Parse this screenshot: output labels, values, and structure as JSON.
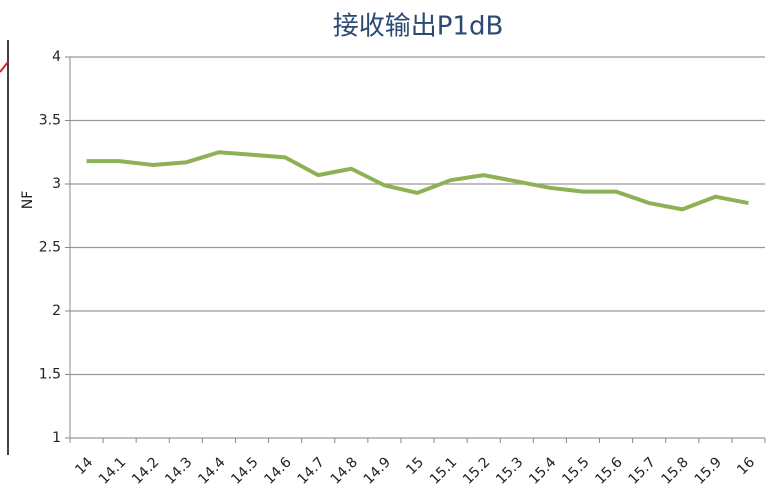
{
  "chart_data": {
    "type": "line",
    "title": "接收输出P1dB",
    "y_label": "NF",
    "categories": [
      "14",
      "14.1",
      "14.2",
      "14.3",
      "14.4",
      "14.5",
      "14.6",
      "14.7",
      "14.8",
      "14.9",
      "15",
      "15.1",
      "15.2",
      "15.3",
      "15.4",
      "15.5",
      "15.6",
      "15.7",
      "15.8",
      "15.9",
      "16"
    ],
    "series": [
      {
        "name": "NF",
        "color": "#8db255",
        "values": [
          3.18,
          3.18,
          3.15,
          3.17,
          3.25,
          3.23,
          3.21,
          3.07,
          3.12,
          2.99,
          2.93,
          3.03,
          3.07,
          3.02,
          2.97,
          2.94,
          2.94,
          2.85,
          2.8,
          2.9,
          2.85
        ]
      }
    ],
    "ylim": [
      1,
      4
    ],
    "yticks": [
      1,
      1.5,
      2,
      2.5,
      3,
      3.5,
      4
    ],
    "grid": true
  }
}
